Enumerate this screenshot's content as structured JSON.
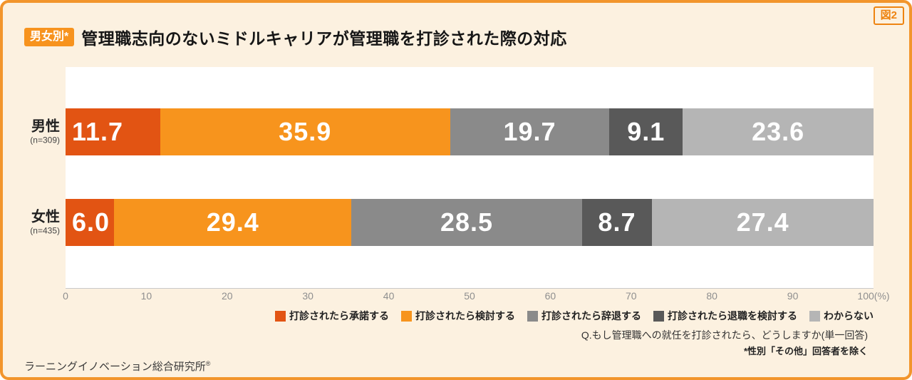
{
  "figure_label": "図2",
  "header": {
    "badge": "男女別*",
    "title": "管理職志向のないミドルキャリアが管理職を打診された際の対応"
  },
  "chart_data": {
    "type": "bar",
    "orientation": "horizontal-stacked",
    "categories": [
      "男性",
      "女性"
    ],
    "category_notes": [
      "(n=309)",
      "(n=435)"
    ],
    "series": [
      {
        "name": "打診されたら承諾する",
        "color": "#e25413",
        "values": [
          11.7,
          6.0
        ]
      },
      {
        "name": "打診されたら検討する",
        "color": "#f7941d",
        "values": [
          35.9,
          29.4
        ]
      },
      {
        "name": "打診されたら辞退する",
        "color": "#8a8a8a",
        "values": [
          19.7,
          28.5
        ]
      },
      {
        "name": "打診されたら退職を検討する",
        "color": "#595959",
        "values": [
          9.1,
          8.7
        ]
      },
      {
        "name": "わからない",
        "color": "#b5b5b5",
        "values": [
          23.6,
          27.4
        ]
      }
    ],
    "xlim": [
      0,
      100
    ],
    "x_ticks": [
      "0",
      "10",
      "20",
      "30",
      "40",
      "50",
      "60",
      "70",
      "80",
      "90",
      "100(%)"
    ],
    "grid": false,
    "legend_position": "bottom-right",
    "value_label_color": "#ffffff"
  },
  "notes": {
    "question": "Q.もし管理職への就任を打診されたら、どうしますか(単一回答)",
    "exclusion": "*性別「その他」回答者を除く"
  },
  "footer": {
    "source": "ラーニングイノベーション総合研究所",
    "source_mark": "®"
  }
}
